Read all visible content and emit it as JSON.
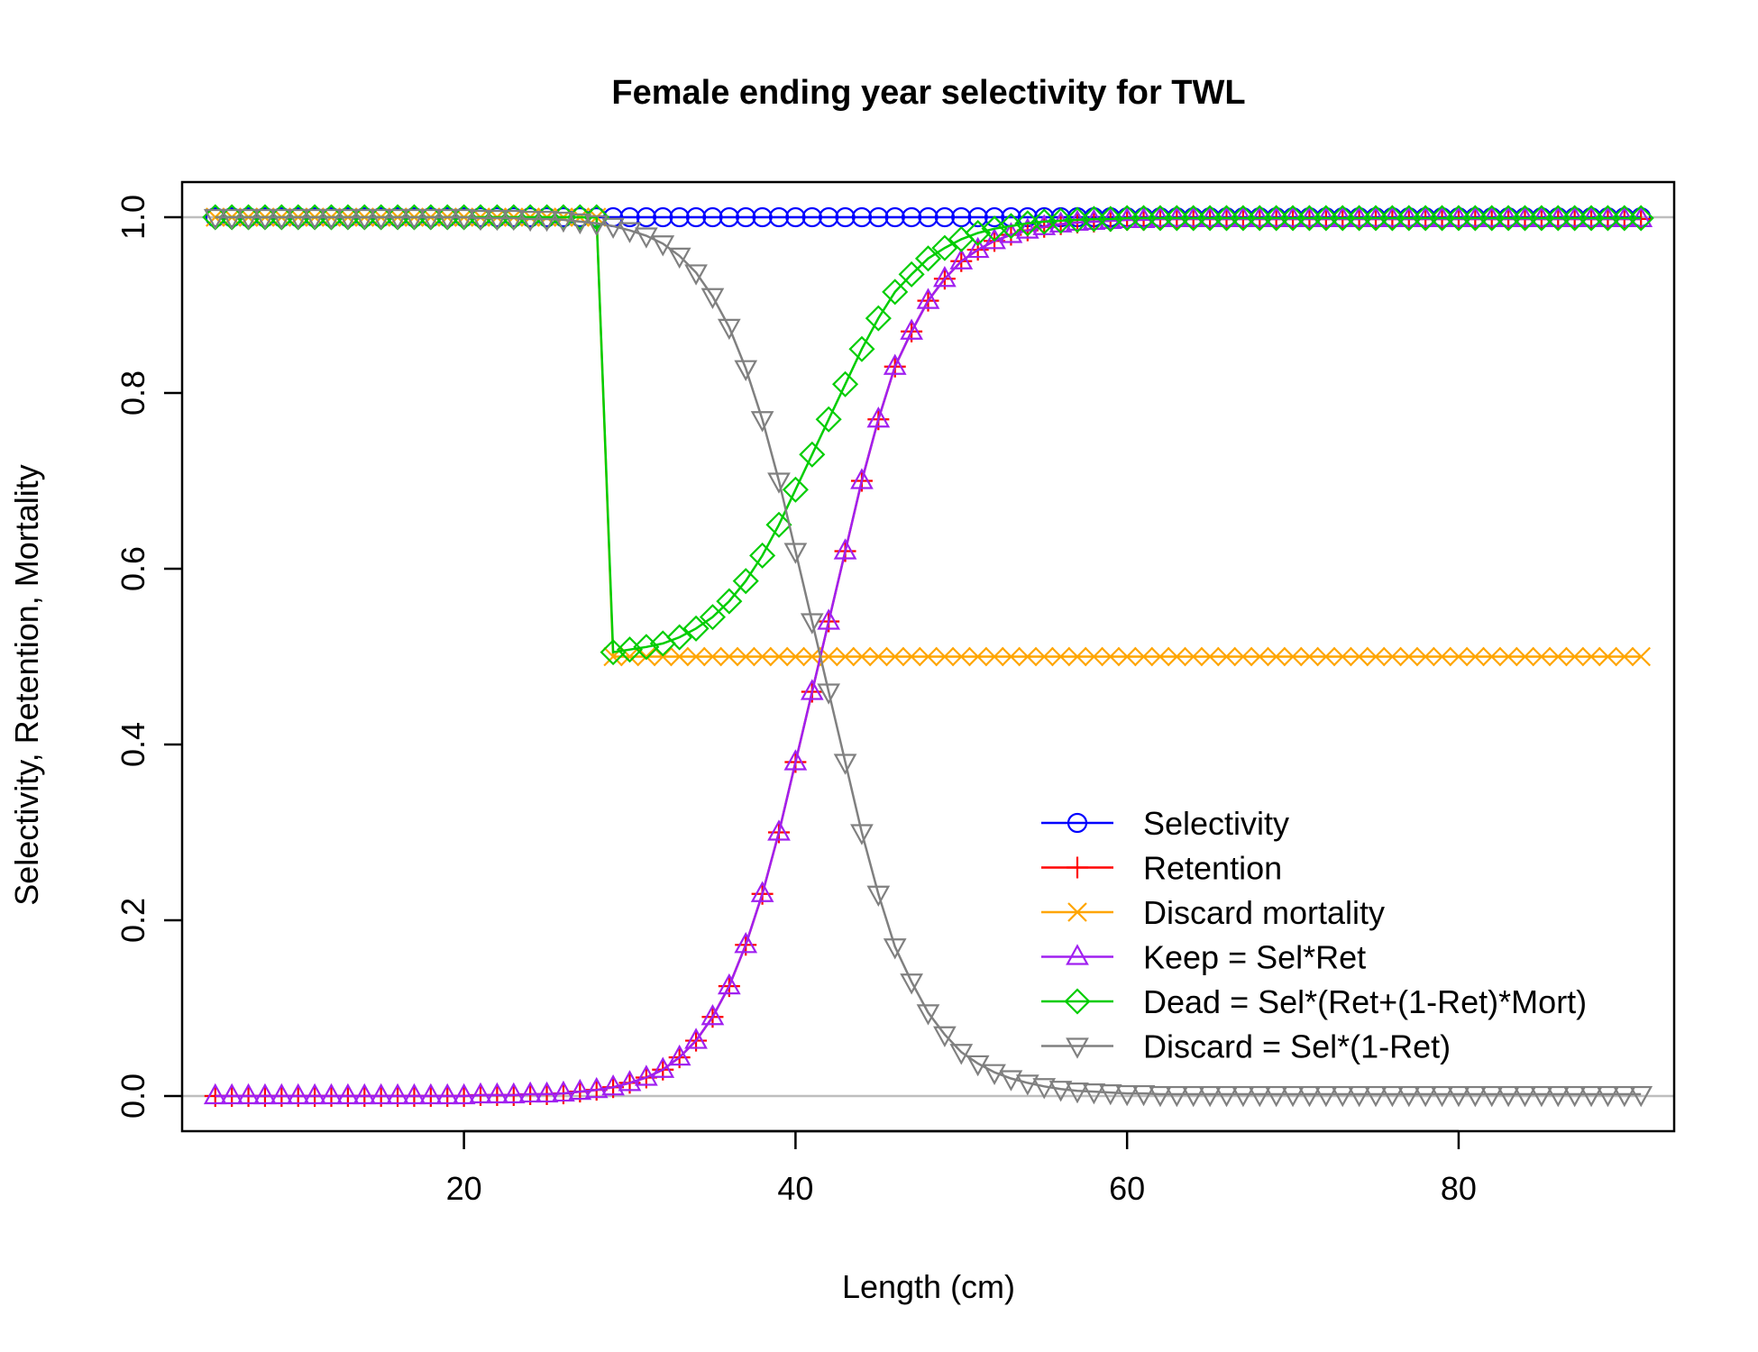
{
  "chart_data": {
    "type": "line",
    "title": "Female ending year selectivity for TWL",
    "xlabel": "Length (cm)",
    "ylabel": "Selectivity, Retention, Mortality",
    "xlim": [
      3,
      93
    ],
    "ylim": [
      -0.04,
      1.04
    ],
    "x_ticks": [
      20,
      40,
      60,
      80
    ],
    "y_ticks": [
      0.0,
      0.2,
      0.4,
      0.6,
      0.8,
      1.0
    ],
    "x_tick_labels": [
      "20",
      "40",
      "60",
      "80"
    ],
    "y_tick_labels": [
      "0.0",
      "0.2",
      "0.4",
      "0.6",
      "0.8",
      "1.0"
    ],
    "reference_lines": [
      0,
      1
    ],
    "reference_line_color": "#BEBEBE",
    "legend_position": "bottom-right",
    "x": [
      5,
      6,
      7,
      8,
      9,
      10,
      11,
      12,
      13,
      14,
      15,
      16,
      17,
      18,
      19,
      20,
      21,
      22,
      23,
      24,
      25,
      26,
      27,
      28,
      29,
      30,
      31,
      32,
      33,
      34,
      35,
      36,
      37,
      38,
      39,
      40,
      41,
      42,
      43,
      44,
      45,
      46,
      47,
      48,
      49,
      50,
      51,
      52,
      53,
      54,
      55,
      56,
      57,
      58,
      59,
      60,
      61,
      62,
      63,
      64,
      65,
      66,
      67,
      68,
      69,
      70,
      71,
      72,
      73,
      74,
      75,
      76,
      77,
      78,
      79,
      80,
      81,
      82,
      83,
      84,
      85,
      86,
      87,
      88,
      89,
      90,
      91
    ],
    "series": [
      {
        "name": "Selectivity",
        "color": "#0000FF",
        "marker": "circle",
        "values": [
          1,
          1,
          1,
          1,
          1,
          1,
          1,
          1,
          1,
          1,
          1,
          1,
          1,
          1,
          1,
          1,
          1,
          1,
          1,
          1,
          1,
          1,
          1,
          1,
          1,
          1,
          1,
          1,
          1,
          1,
          1,
          1,
          1,
          1,
          1,
          1,
          1,
          1,
          1,
          1,
          1,
          1,
          1,
          1,
          1,
          1,
          1,
          1,
          1,
          1,
          1,
          1,
          1,
          1,
          1,
          1,
          1,
          1,
          1,
          1,
          1,
          1,
          1,
          1,
          1,
          1,
          1,
          1,
          1,
          1,
          1,
          1,
          1,
          1,
          1,
          1,
          1,
          1,
          1,
          1,
          1,
          1,
          1,
          1,
          1,
          1,
          1
        ]
      },
      {
        "name": "Retention",
        "color": "#FF0000",
        "marker": "plus",
        "values": [
          0,
          0,
          0,
          0,
          0,
          0,
          0,
          0,
          0,
          0,
          0,
          0,
          0,
          0,
          0,
          0,
          0.001,
          0.001,
          0.001,
          0.002,
          0.002,
          0.003,
          0.005,
          0.007,
          0.01,
          0.015,
          0.021,
          0.03,
          0.044,
          0.063,
          0.09,
          0.125,
          0.172,
          0.23,
          0.3,
          0.38,
          0.46,
          0.54,
          0.62,
          0.7,
          0.77,
          0.83,
          0.87,
          0.905,
          0.93,
          0.95,
          0.963,
          0.973,
          0.98,
          0.985,
          0.989,
          0.992,
          0.994,
          0.995,
          0.996,
          0.997,
          0.997,
          0.998,
          0.998,
          0.998,
          0.998,
          0.998,
          0.998,
          0.998,
          0.998,
          0.998,
          0.998,
          0.998,
          0.998,
          0.998,
          0.998,
          0.998,
          0.998,
          0.998,
          0.998,
          0.998,
          0.998,
          0.998,
          0.998,
          0.998,
          0.998,
          0.998,
          0.998,
          0.998,
          0.998,
          0.998,
          0.998
        ]
      },
      {
        "name": "Discard mortality",
        "color": "#FFA500",
        "marker": "x",
        "values": [
          1,
          1,
          1,
          1,
          1,
          1,
          1,
          1,
          1,
          1,
          1,
          1,
          1,
          1,
          1,
          1,
          1,
          1,
          1,
          1,
          1,
          1,
          1,
          1,
          0.5,
          0.5,
          0.5,
          0.5,
          0.5,
          0.5,
          0.5,
          0.5,
          0.5,
          0.5,
          0.5,
          0.5,
          0.5,
          0.5,
          0.5,
          0.5,
          0.5,
          0.5,
          0.5,
          0.5,
          0.5,
          0.5,
          0.5,
          0.5,
          0.5,
          0.5,
          0.5,
          0.5,
          0.5,
          0.5,
          0.5,
          0.5,
          0.5,
          0.5,
          0.5,
          0.5,
          0.5,
          0.5,
          0.5,
          0.5,
          0.5,
          0.5,
          0.5,
          0.5,
          0.5,
          0.5,
          0.5,
          0.5,
          0.5,
          0.5,
          0.5,
          0.5,
          0.5,
          0.5,
          0.5,
          0.5,
          0.5,
          0.5,
          0.5,
          0.5,
          0.5,
          0.5,
          0.5
        ]
      },
      {
        "name": "Keep = Sel*Ret",
        "color": "#A020F0",
        "marker": "triangle-up",
        "values": [
          0,
          0,
          0,
          0,
          0,
          0,
          0,
          0,
          0,
          0,
          0,
          0,
          0,
          0,
          0,
          0,
          0.001,
          0.001,
          0.001,
          0.002,
          0.002,
          0.003,
          0.005,
          0.007,
          0.01,
          0.015,
          0.021,
          0.03,
          0.044,
          0.063,
          0.09,
          0.125,
          0.172,
          0.23,
          0.3,
          0.38,
          0.46,
          0.54,
          0.62,
          0.7,
          0.77,
          0.83,
          0.87,
          0.905,
          0.93,
          0.95,
          0.963,
          0.973,
          0.98,
          0.985,
          0.989,
          0.992,
          0.994,
          0.995,
          0.996,
          0.997,
          0.997,
          0.998,
          0.998,
          0.998,
          0.998,
          0.998,
          0.998,
          0.998,
          0.998,
          0.998,
          0.998,
          0.998,
          0.998,
          0.998,
          0.998,
          0.998,
          0.998,
          0.998,
          0.998,
          0.998,
          0.998,
          0.998,
          0.998,
          0.998,
          0.998,
          0.998,
          0.998,
          0.998,
          0.998,
          0.998,
          0.998
        ]
      },
      {
        "name": "Dead = Sel*(Ret+(1-Ret)*Mort)",
        "color": "#00CD00",
        "marker": "diamond",
        "values": [
          1,
          1,
          1,
          1,
          1,
          1,
          1,
          1,
          1,
          1,
          1,
          1,
          1,
          1,
          1,
          1,
          1,
          1,
          1,
          1,
          1,
          1,
          1,
          1,
          0.505,
          0.508,
          0.511,
          0.515,
          0.522,
          0.532,
          0.545,
          0.563,
          0.586,
          0.615,
          0.65,
          0.69,
          0.73,
          0.77,
          0.81,
          0.85,
          0.885,
          0.915,
          0.935,
          0.953,
          0.965,
          0.975,
          0.982,
          0.987,
          0.99,
          0.993,
          0.995,
          0.996,
          0.997,
          0.998,
          0.998,
          0.999,
          0.999,
          0.999,
          0.999,
          0.999,
          0.999,
          0.999,
          0.999,
          0.999,
          0.999,
          0.999,
          0.999,
          0.999,
          0.999,
          0.999,
          0.999,
          0.999,
          0.999,
          0.999,
          0.999,
          0.999,
          0.999,
          0.999,
          0.999,
          0.999,
          0.999,
          0.999,
          0.999,
          0.999,
          0.999,
          0.999,
          0.999
        ]
      },
      {
        "name": "Discard = Sel*(1-Ret)",
        "color": "#808080",
        "marker": "triangle-down",
        "values": [
          1,
          1,
          1,
          1,
          1,
          1,
          1,
          1,
          1,
          1,
          1,
          1,
          1,
          1,
          1,
          1,
          0.999,
          0.999,
          0.999,
          0.998,
          0.998,
          0.997,
          0.995,
          0.993,
          0.99,
          0.985,
          0.979,
          0.97,
          0.956,
          0.937,
          0.91,
          0.875,
          0.828,
          0.77,
          0.7,
          0.62,
          0.54,
          0.46,
          0.38,
          0.3,
          0.23,
          0.17,
          0.13,
          0.095,
          0.07,
          0.05,
          0.037,
          0.027,
          0.02,
          0.015,
          0.011,
          0.008,
          0.006,
          0.005,
          0.004,
          0.003,
          0.003,
          0.002,
          0.002,
          0.002,
          0.002,
          0.002,
          0.002,
          0.002,
          0.002,
          0.002,
          0.002,
          0.002,
          0.002,
          0.002,
          0.002,
          0.002,
          0.002,
          0.002,
          0.002,
          0.002,
          0.002,
          0.002,
          0.002,
          0.002,
          0.002,
          0.002,
          0.002,
          0.002,
          0.002,
          0.002,
          0.002
        ]
      }
    ]
  }
}
